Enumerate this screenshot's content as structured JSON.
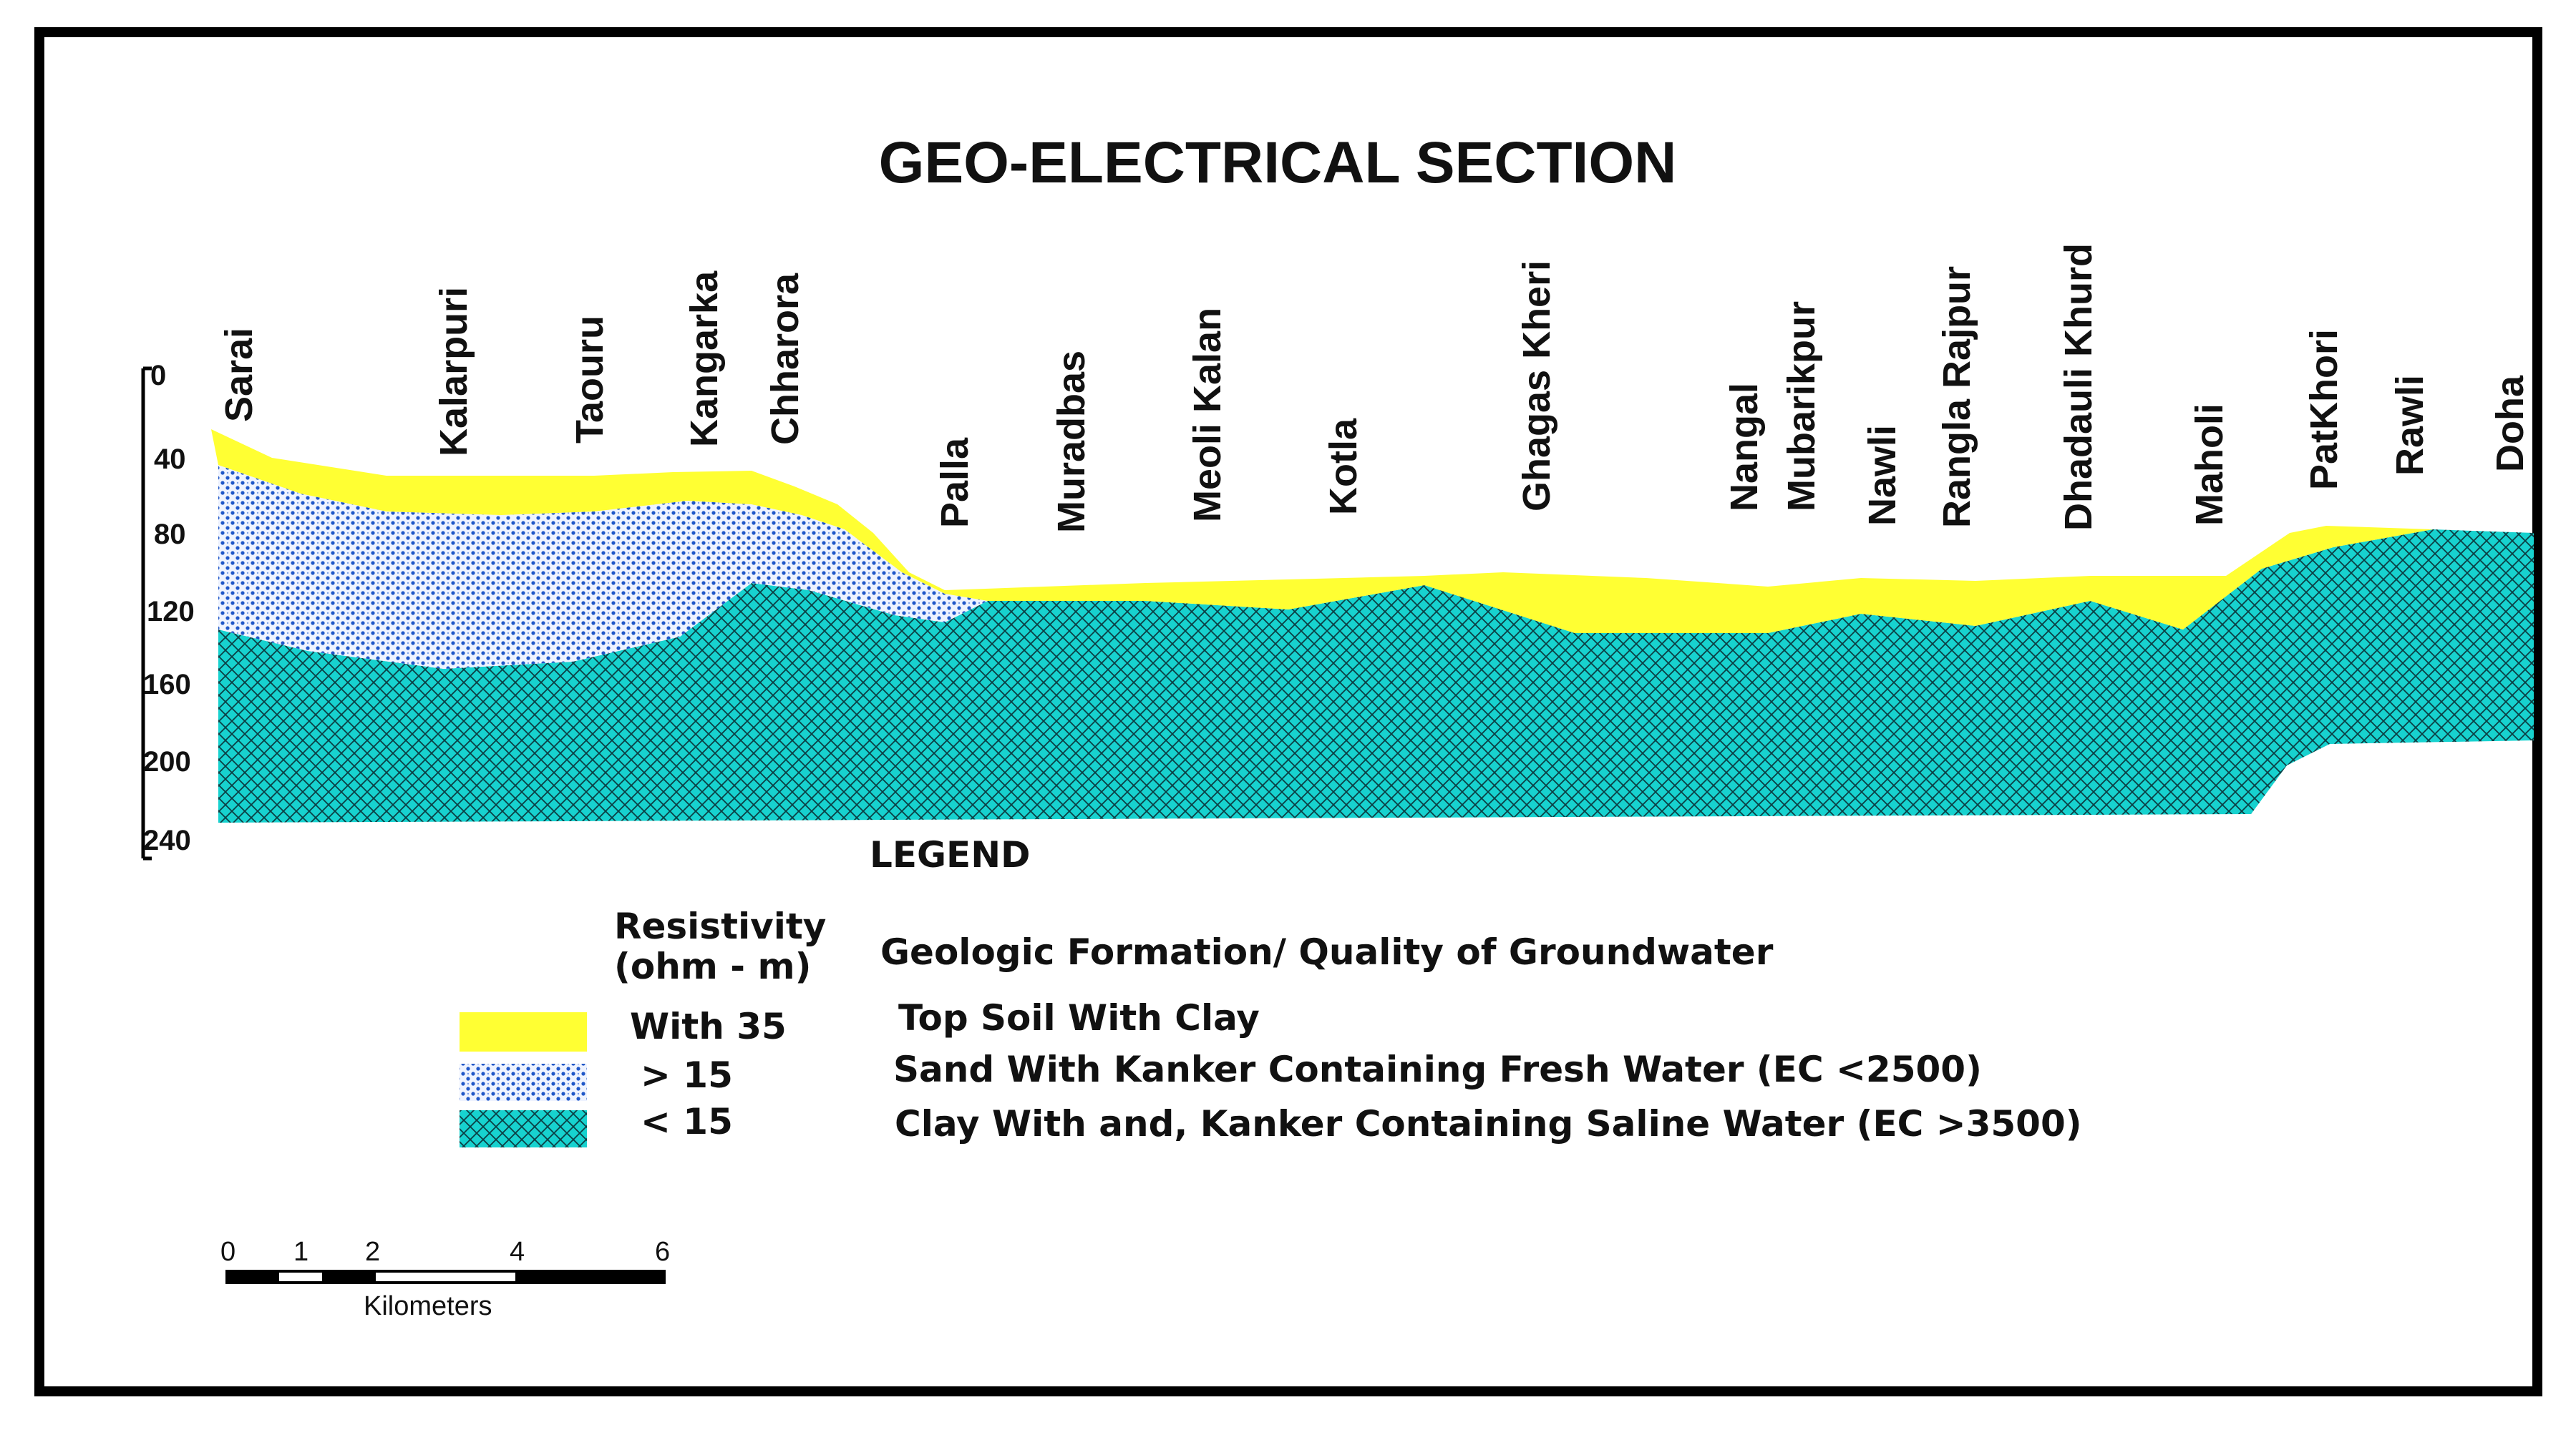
{
  "title": "GEO-ELECTRICAL SECTION",
  "villages": [
    {
      "label": "Sarai"
    },
    {
      "label": "Kalarpuri"
    },
    {
      "label": "Taouru"
    },
    {
      "label": "Kangarka"
    },
    {
      "label": "Chharora"
    },
    {
      "label": "Palla"
    },
    {
      "label": "Muradbas"
    },
    {
      "label": "Meoli Kalan"
    },
    {
      "label": "Kotla"
    },
    {
      "label": "Ghagas Kheri"
    },
    {
      "label": "Nangal"
    },
    {
      "label": "Mubarikpur"
    },
    {
      "label": "Nawli"
    },
    {
      "label": "Rangla Rajpur"
    },
    {
      "label": "Dhadauli Khurd"
    },
    {
      "label": "Maholi"
    },
    {
      "label": "PatKhori"
    },
    {
      "label": "Rawli"
    },
    {
      "label": "Doha"
    }
  ],
  "depth_axis": {
    "ticks": [
      "0",
      "40",
      "80",
      "120",
      "160",
      "200",
      "240"
    ]
  },
  "legend": {
    "title": "LEGEND",
    "col1_header_line1": "Resistivity",
    "col1_header_line2": "(ohm - m)",
    "col2_header": "Geologic Formation/ Quality of Groundwater",
    "items": [
      {
        "resistivity": "With 35",
        "description": "Top Soil With Clay",
        "color": "#ffff33"
      },
      {
        "resistivity": ">   15",
        "description": "Sand With Kanker Containing Fresh Water (EC <2500)",
        "color": "#3a6fd8"
      },
      {
        "resistivity": "<   15",
        "description": "Clay With and, Kanker Containing Saline Water (EC >3500)",
        "color": "#17d2cf"
      }
    ]
  },
  "scale_bar": {
    "ticks": [
      "0",
      "1",
      "2",
      "4",
      "6"
    ],
    "unit": "Kilometers"
  },
  "colors": {
    "top_soil": "#ffff33",
    "sand_fresh": "#3a6fd8",
    "clay_saline": "#17d2cf",
    "frame": "#000000"
  }
}
